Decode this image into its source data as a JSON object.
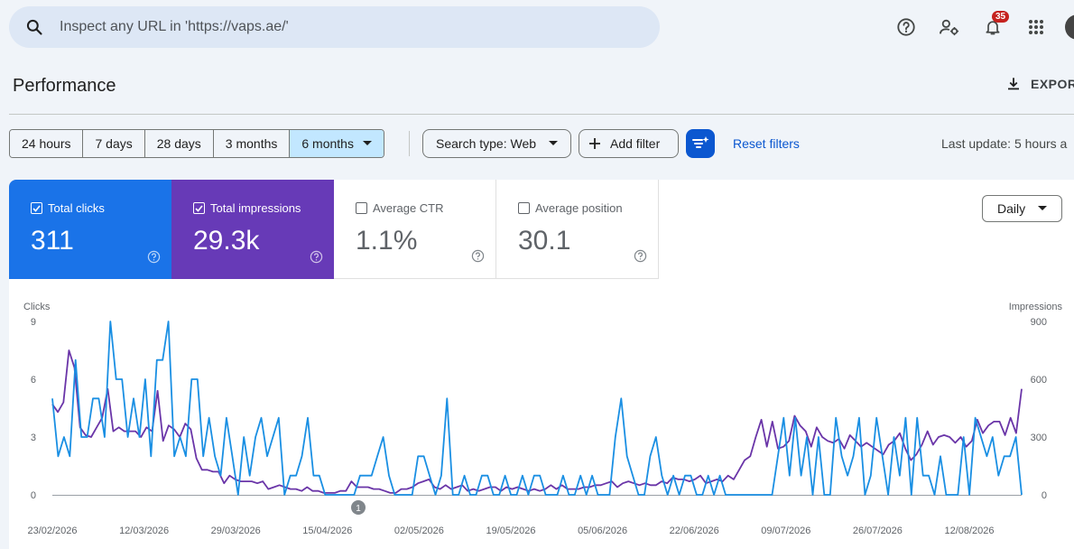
{
  "search": {
    "placeholder": "Inspect any URL in 'https://vaps.ae/'"
  },
  "header": {
    "notifications_count": "35"
  },
  "page": {
    "title": "Performance",
    "export_label": "EXPOR"
  },
  "date_ranges": [
    {
      "label": "24 hours",
      "selected": false
    },
    {
      "label": "7 days",
      "selected": false
    },
    {
      "label": "28 days",
      "selected": false
    },
    {
      "label": "3 months",
      "selected": false
    },
    {
      "label": "6 months",
      "selected": true
    }
  ],
  "filters": {
    "search_type": "Search type: Web",
    "add_filter": "Add filter",
    "reset": "Reset filters",
    "last_update": "Last update: 5 hours a"
  },
  "metrics": {
    "clicks": {
      "label": "Total clicks",
      "value": "311",
      "checked": true,
      "color": "#1a73e8"
    },
    "impressions": {
      "label": "Total impressions",
      "value": "29.3k",
      "checked": true,
      "color": "#673ab7"
    },
    "ctr": {
      "label": "Average CTR",
      "value": "1.1%",
      "checked": false
    },
    "position": {
      "label": "Average position",
      "value": "30.1",
      "checked": false
    }
  },
  "granularity": "Daily",
  "chart_data": {
    "type": "line",
    "left_axis": {
      "label": "Clicks",
      "ticks": [
        "9",
        "6",
        "3",
        "0"
      ],
      "range": [
        0,
        9
      ]
    },
    "right_axis": {
      "label": "Impressions",
      "ticks": [
        "900",
        "600",
        "300",
        "0"
      ],
      "range": [
        0,
        900
      ]
    },
    "x_ticks": [
      "23/02/2026",
      "12/03/2026",
      "29/03/2026",
      "15/04/2026",
      "02/05/2026",
      "19/05/2026",
      "05/06/2026",
      "22/06/2026",
      "09/07/2026",
      "26/07/2026",
      "12/08/2026"
    ],
    "annotation": "1",
    "grid": false,
    "series": [
      {
        "name": "Clicks",
        "axis": "left",
        "color": "#1a8fe3",
        "values": [
          5,
          2,
          3,
          2,
          7,
          3,
          3,
          5,
          5,
          3,
          9,
          6,
          6,
          3,
          5,
          3,
          6,
          2,
          7,
          7,
          9,
          2,
          3,
          2,
          6,
          6,
          2,
          4,
          2,
          1,
          4,
          2,
          0,
          3,
          1,
          3,
          4,
          2,
          3,
          4,
          0,
          1,
          1,
          2,
          4,
          1,
          1,
          0,
          0,
          0,
          0,
          0,
          0,
          1,
          1,
          1,
          2,
          3,
          1,
          0,
          0,
          0,
          0,
          2,
          2,
          1,
          0,
          1,
          5,
          0,
          0,
          1,
          0,
          0,
          1,
          1,
          0,
          0,
          1,
          0,
          0,
          1,
          0,
          1,
          1,
          0,
          0,
          0,
          1,
          0,
          0,
          1,
          0,
          1,
          0,
          0,
          0,
          3,
          5,
          2,
          1,
          0,
          0,
          2,
          3,
          1,
          0,
          1,
          0,
          1,
          1,
          0,
          0,
          1,
          0,
          1,
          0,
          0,
          0,
          0,
          0,
          0,
          0,
          0,
          0,
          2,
          4,
          1,
          4,
          1,
          3,
          0,
          3,
          0,
          0,
          4,
          2,
          1,
          2,
          4,
          0,
          1,
          4,
          2,
          0,
          3,
          1,
          4,
          0,
          4,
          1,
          1,
          0,
          2,
          0,
          0,
          0,
          3,
          0,
          4,
          3,
          2,
          3,
          1,
          2,
          2,
          3,
          0
        ]
      },
      {
        "name": "Impressions",
        "axis": "left",
        "color": "#6a35a8",
        "values": [
          4.7,
          4.3,
          4.8,
          7.5,
          6.6,
          3.5,
          3.1,
          3.0,
          3.5,
          4.0,
          5.5,
          3.3,
          3.5,
          3.3,
          3.3,
          3.3,
          3.0,
          3.5,
          3.3,
          5.4,
          2.8,
          3.6,
          3.4,
          3.0,
          3.7,
          3.4,
          1.9,
          1.3,
          1.3,
          1.2,
          1.2,
          0.6,
          1.0,
          0.8,
          0.7,
          0.7,
          0.7,
          0.6,
          0.7,
          0.3,
          0.4,
          0.5,
          0.4,
          0.3,
          0.3,
          0.2,
          0.4,
          0.2,
          0.2,
          0.1,
          0.1,
          0.1,
          0.2,
          0.2,
          0.7,
          0.4,
          0.4,
          0.4,
          0.3,
          0.3,
          0.2,
          0.1,
          0.1,
          0.3,
          0.3,
          0.4,
          0.6,
          0.7,
          0.8,
          0.4,
          0.3,
          0.5,
          0.3,
          0.4,
          0.5,
          0.2,
          0.3,
          0.2,
          0.3,
          0.4,
          0.4,
          0.2,
          0.4,
          0.3,
          0.4,
          0.3,
          0.2,
          0.3,
          0.2,
          0.3,
          0.5,
          0.3,
          0.5,
          0.3,
          0.3,
          0.3,
          0.4,
          0.4,
          0.5,
          0.5,
          0.6,
          0.7,
          0.4,
          0.6,
          0.7,
          0.6,
          0.5,
          0.6,
          0.5,
          0.5,
          0.7,
          0.6,
          0.9,
          0.8,
          0.8,
          0.7,
          0.8,
          1.0,
          0.6,
          0.7,
          0.8,
          0.7,
          1.0,
          0.8,
          1.3,
          1.8,
          2.0,
          3.0,
          3.9,
          2.5,
          3.8,
          2.4,
          2.5,
          2.8,
          4.1,
          3.6,
          3.3,
          2.5,
          3.5,
          3.0,
          2.8,
          2.7,
          2.9,
          2.4,
          3.1,
          2.8,
          2.5,
          2.7,
          2.5,
          2.3,
          2.1,
          2.6,
          2.8,
          3.2,
          2.4,
          1.8,
          2.1,
          2.6,
          3.3,
          2.6,
          3.0,
          3.1,
          3.0,
          2.7,
          3.0,
          2.5,
          2.8,
          3.9,
          3.2,
          3.6,
          3.8,
          3.8,
          3.1,
          4.0,
          3.2,
          5.5
        ]
      }
    ]
  }
}
